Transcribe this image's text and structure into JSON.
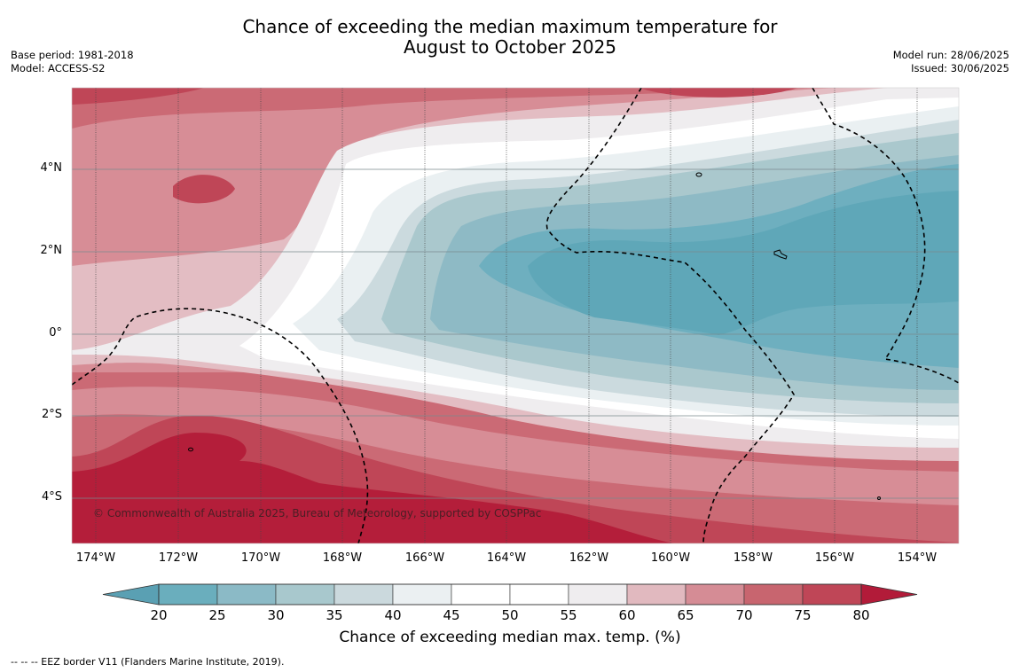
{
  "title": {
    "line1": "Chance of exceeding the median maximum temperature for",
    "line2": "August to October 2025"
  },
  "meta_left": [
    "Base period: 1981-2018",
    "Model: ACCESS-S2"
  ],
  "meta_right": [
    "Model run: 28/06/2025",
    "Issued: 30/06/2025"
  ],
  "map": {
    "lon_ticks": [
      "174°W",
      "172°W",
      "170°W",
      "168°W",
      "166°W",
      "164°W",
      "162°W",
      "160°W",
      "158°W",
      "156°W",
      "154°W"
    ],
    "lat_ticks": [
      "4°N",
      "2°N",
      "0°",
      "2°S",
      "4°S"
    ],
    "copyright": "© Commonwealth of Australia 2025, Bureau of Meteorology, supported by COSPPac",
    "colors": {
      "c20": "#5fa7b8",
      "c25": "#6eafbf",
      "c30": "#8ebac5",
      "c35": "#aac8cd",
      "c40": "#cbdade",
      "c45": "#eaf0f2",
      "c50": "#ffffff",
      "c55": "#ffffff",
      "c60": "#efedef",
      "c65": "#e3bdc3",
      "c70": "#d78d96",
      "c75": "#cb6a75",
      "c80": "#bf4657",
      "c85": "#b41e3a"
    }
  },
  "colorbar": {
    "labels": [
      "20",
      "25",
      "30",
      "35",
      "40",
      "45",
      "50",
      "55",
      "60",
      "65",
      "70",
      "75",
      "80"
    ],
    "colors": [
      "#6aaebd",
      "#8bbac6",
      "#a8c8cd",
      "#cbd9dd",
      "#ebf0f2",
      "#ffffff",
      "#ffffff",
      "#efedef",
      "#e1b9bf",
      "#d58c95",
      "#c8656f",
      "#bf4657"
    ],
    "low_extend": "#5aa0b3",
    "high_extend": "#b21b39",
    "title": "Chance of exceeding median max. temp. (%)"
  },
  "eez_note": "--  --  -- EEZ border V11 (Flanders Marine Institute, 2019)."
}
